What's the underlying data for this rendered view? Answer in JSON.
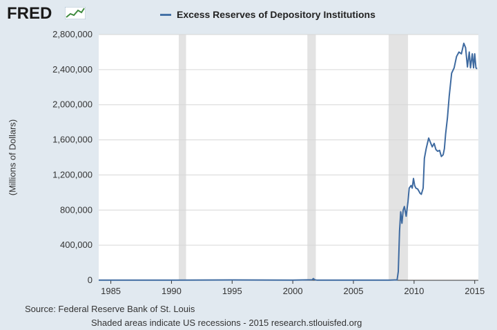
{
  "brand": {
    "name": "FRED"
  },
  "chart_data": {
    "type": "line",
    "title": "Excess Reserves of Depository Institutions",
    "ylabel": "(Millions of Dollars)",
    "xlim": [
      1984.0,
      2015.3
    ],
    "ylim": [
      0,
      2800000
    ],
    "xticks": [
      1985,
      1990,
      1995,
      2000,
      2005,
      2010,
      2015
    ],
    "yticks": [
      0,
      400000,
      800000,
      1200000,
      1600000,
      2000000,
      2400000,
      2800000
    ],
    "ytick_labels": [
      "0",
      "400,000",
      "800,000",
      "1,200,000",
      "1,600,000",
      "2,000,000",
      "2,400,000",
      "2,800,000"
    ],
    "recessions": [
      [
        1990.6,
        1991.2
      ],
      [
        2001.2,
        2001.9
      ],
      [
        2007.9,
        2009.5
      ]
    ],
    "grid": true,
    "legend": "top",
    "colors": {
      "line": "#3e6aa0",
      "recession": "#e3e3e3",
      "grid": "#d6d6d6",
      "background": "#e1e9f0",
      "plot": "#ffffff"
    },
    "series": [
      {
        "name": "Excess Reserves of Depository Institutions",
        "x": [
          1984.0,
          1990.0,
          1995.0,
          2000.0,
          2001.6,
          2001.7,
          2001.8,
          2002.0,
          2005.0,
          2008.0,
          2008.6,
          2008.7,
          2008.8,
          2008.9,
          2009.0,
          2009.1,
          2009.2,
          2009.35,
          2009.5,
          2009.6,
          2009.75,
          2009.85,
          2009.95,
          2010.05,
          2010.15,
          2010.3,
          2010.5,
          2010.6,
          2010.75,
          2010.85,
          2011.0,
          2011.2,
          2011.35,
          2011.5,
          2011.65,
          2011.8,
          2011.95,
          2012.1,
          2012.25,
          2012.4,
          2012.5,
          2012.6,
          2012.75,
          2012.9,
          2013.1,
          2013.3,
          2013.5,
          2013.7,
          2013.9,
          2014.1,
          2014.25,
          2014.4,
          2014.55,
          2014.65,
          2014.8,
          2014.9,
          2015.0,
          2015.1,
          2015.2
        ],
        "values": [
          1500,
          1500,
          4000,
          1500,
          6000,
          20000,
          6000,
          1500,
          1500,
          2000,
          5000,
          100000,
          560000,
          780000,
          650000,
          800000,
          840000,
          730000,
          900000,
          1050000,
          1080000,
          1050000,
          1160000,
          1080000,
          1050000,
          1040000,
          990000,
          980000,
          1050000,
          1390000,
          1500000,
          1620000,
          1570000,
          1520000,
          1560000,
          1490000,
          1470000,
          1480000,
          1410000,
          1430000,
          1500000,
          1670000,
          1850000,
          2100000,
          2360000,
          2420000,
          2550000,
          2600000,
          2580000,
          2700000,
          2650000,
          2430000,
          2600000,
          2420000,
          2580000,
          2420000,
          2580000,
          2420000,
          2410000
        ]
      }
    ]
  },
  "footer": {
    "source": "Source: Federal Reserve Bank of St. Louis",
    "note": "Shaded areas indicate US recessions - 2015 research.stlouisfed.org"
  }
}
